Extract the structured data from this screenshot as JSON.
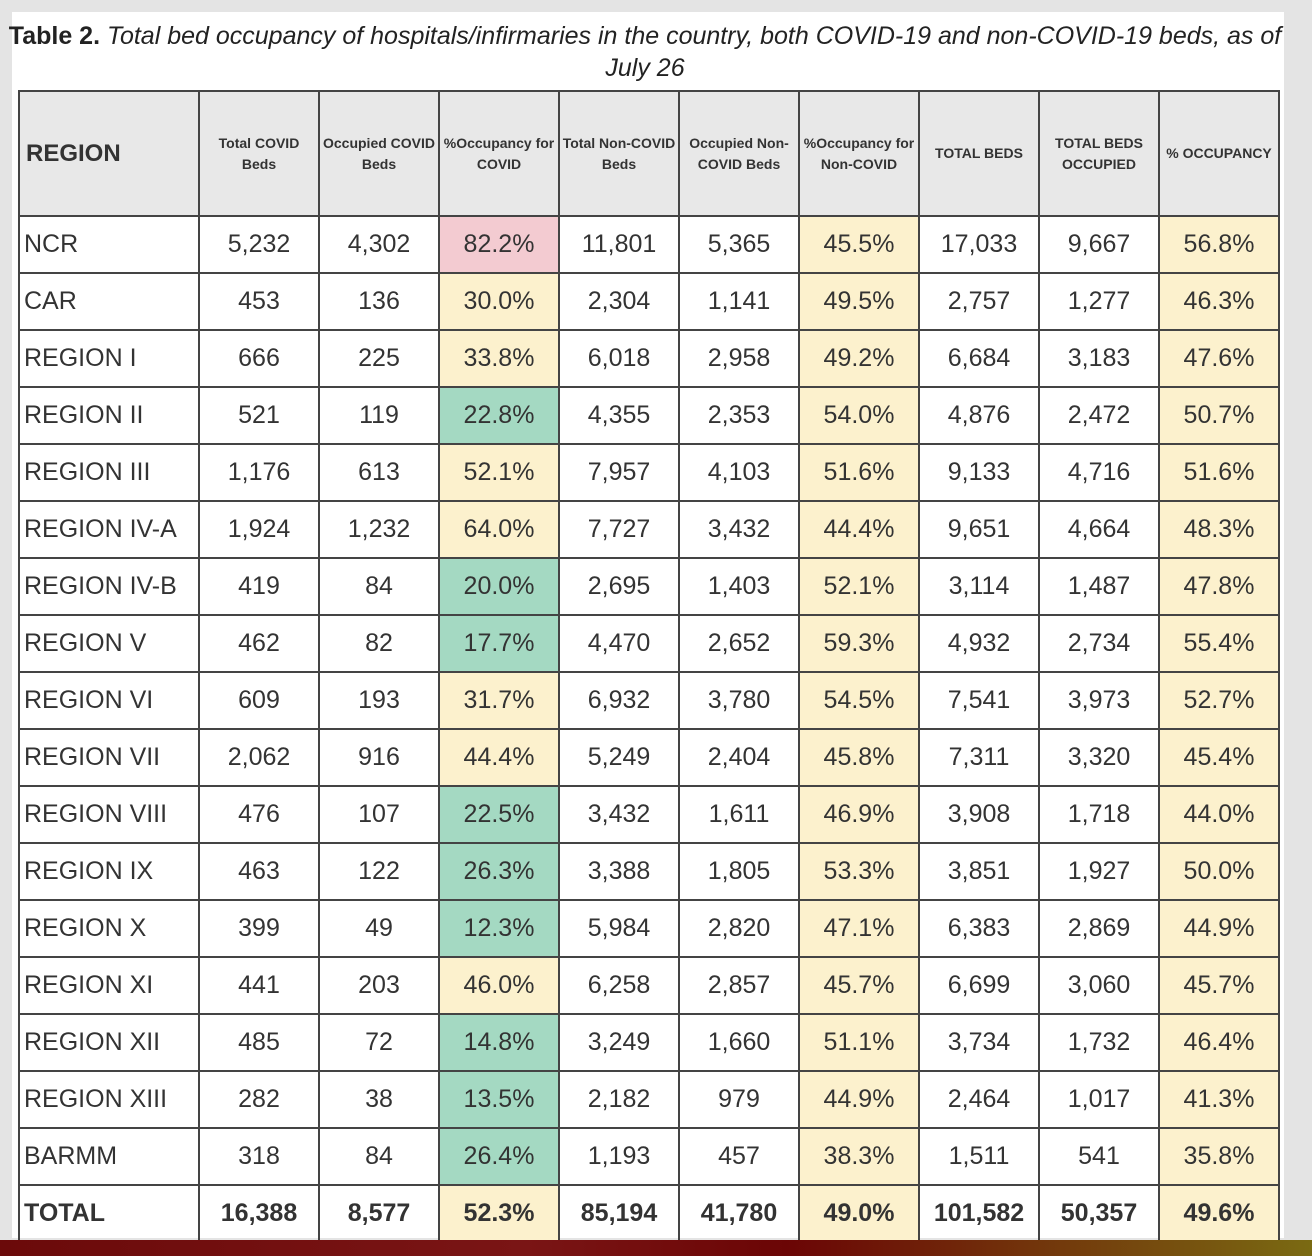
{
  "title": {
    "label": "Table 2.",
    "text": "Total bed occupancy of hospitals/infirmaries in the country, both COVID-19 and non-COVID-19 beds, as of July 26"
  },
  "colors": {
    "pink": "#f3cbd1",
    "yellow": "#fcf1cd",
    "green": "#a4d9c2"
  },
  "columns": [
    "REGION",
    "Total COVID Beds",
    "Occupied COVID Beds",
    "%Occupancy for COVID",
    "Total Non-COVID Beds",
    "Occupied Non-COVID Beds",
    "%Occupancy for Non-COVID",
    "TOTAL BEDS",
    "TOTAL BEDS OCCUPIED",
    "% OCCUPANCY"
  ],
  "rows": [
    {
      "cells": [
        "NCR",
        "5,232",
        "4,302",
        "82.2%",
        "11,801",
        "5,365",
        "45.5%",
        "17,033",
        "9,667",
        "56.8%"
      ],
      "covid_color": "pink"
    },
    {
      "cells": [
        "CAR",
        "453",
        "136",
        "30.0%",
        "2,304",
        "1,141",
        "49.5%",
        "2,757",
        "1,277",
        "46.3%"
      ],
      "covid_color": "yellow"
    },
    {
      "cells": [
        "REGION I",
        "666",
        "225",
        "33.8%",
        "6,018",
        "2,958",
        "49.2%",
        "6,684",
        "3,183",
        "47.6%"
      ],
      "covid_color": "yellow"
    },
    {
      "cells": [
        "REGION II",
        "521",
        "119",
        "22.8%",
        "4,355",
        "2,353",
        "54.0%",
        "4,876",
        "2,472",
        "50.7%"
      ],
      "covid_color": "green"
    },
    {
      "cells": [
        "REGION III",
        "1,176",
        "613",
        "52.1%",
        "7,957",
        "4,103",
        "51.6%",
        "9,133",
        "4,716",
        "51.6%"
      ],
      "covid_color": "yellow"
    },
    {
      "cells": [
        "REGION IV-A",
        "1,924",
        "1,232",
        "64.0%",
        "7,727",
        "3,432",
        "44.4%",
        "9,651",
        "4,664",
        "48.3%"
      ],
      "covid_color": "yellow"
    },
    {
      "cells": [
        "REGION IV-B",
        "419",
        "84",
        "20.0%",
        "2,695",
        "1,403",
        "52.1%",
        "3,114",
        "1,487",
        "47.8%"
      ],
      "covid_color": "green"
    },
    {
      "cells": [
        "REGION V",
        "462",
        "82",
        "17.7%",
        "4,470",
        "2,652",
        "59.3%",
        "4,932",
        "2,734",
        "55.4%"
      ],
      "covid_color": "green"
    },
    {
      "cells": [
        "REGION VI",
        "609",
        "193",
        "31.7%",
        "6,932",
        "3,780",
        "54.5%",
        "7,541",
        "3,973",
        "52.7%"
      ],
      "covid_color": "yellow"
    },
    {
      "cells": [
        "REGION VII",
        "2,062",
        "916",
        "44.4%",
        "5,249",
        "2,404",
        "45.8%",
        "7,311",
        "3,320",
        "45.4%"
      ],
      "covid_color": "yellow"
    },
    {
      "cells": [
        "REGION VIII",
        "476",
        "107",
        "22.5%",
        "3,432",
        "1,611",
        "46.9%",
        "3,908",
        "1,718",
        "44.0%"
      ],
      "covid_color": "green"
    },
    {
      "cells": [
        "REGION IX",
        "463",
        "122",
        "26.3%",
        "3,388",
        "1,805",
        "53.3%",
        "3,851",
        "1,927",
        "50.0%"
      ],
      "covid_color": "green"
    },
    {
      "cells": [
        "REGION X",
        "399",
        "49",
        "12.3%",
        "5,984",
        "2,820",
        "47.1%",
        "6,383",
        "2,869",
        "44.9%"
      ],
      "covid_color": "green"
    },
    {
      "cells": [
        "REGION XI",
        "441",
        "203",
        "46.0%",
        "6,258",
        "2,857",
        "45.7%",
        "6,699",
        "3,060",
        "45.7%"
      ],
      "covid_color": "yellow"
    },
    {
      "cells": [
        "REGION XII",
        "485",
        "72",
        "14.8%",
        "3,249",
        "1,660",
        "51.1%",
        "3,734",
        "1,732",
        "46.4%"
      ],
      "covid_color": "green"
    },
    {
      "cells": [
        "REGION XIII",
        "282",
        "38",
        "13.5%",
        "2,182",
        "979",
        "44.9%",
        "2,464",
        "1,017",
        "41.3%"
      ],
      "covid_color": "green"
    },
    {
      "cells": [
        "BARMM",
        "318",
        "84",
        "26.4%",
        "1,193",
        "457",
        "38.3%",
        "1,511",
        "541",
        "35.8%"
      ],
      "covid_color": "green"
    }
  ],
  "total": {
    "cells": [
      "TOTAL",
      "16,388",
      "8,577",
      "52.3%",
      "85,194",
      "41,780",
      "49.0%",
      "101,582",
      "50,357",
      "49.6%"
    ],
    "covid_color": "yellow"
  }
}
